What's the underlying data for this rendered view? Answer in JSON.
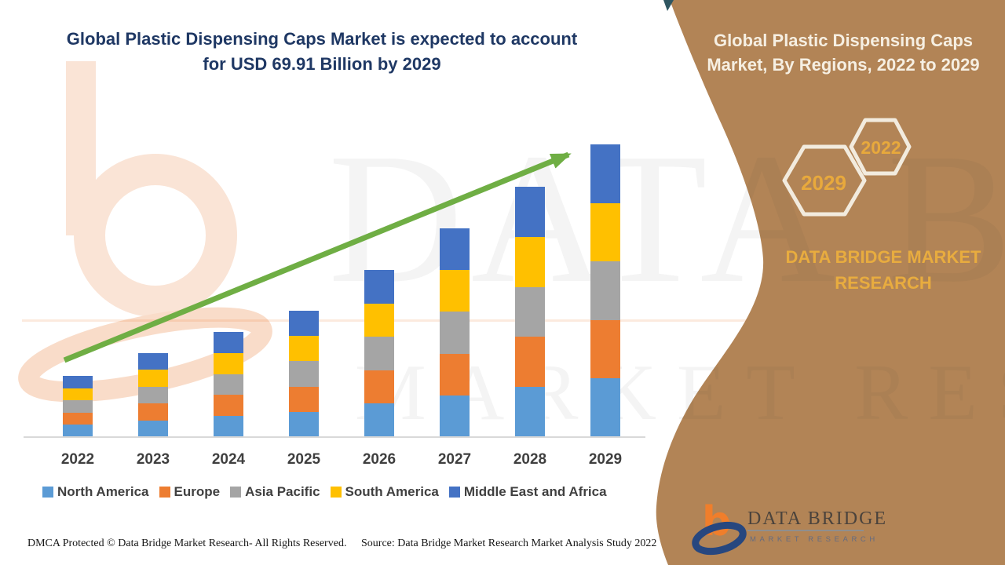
{
  "header": {
    "title_lines": [
      "Global Plastic Dispensing Caps Market is expected to account",
      "for USD 69.91 Billion by 2029"
    ]
  },
  "side_panel": {
    "title_lines": [
      "Global Plastic Dispensing Caps",
      "Market, By Regions, 2022 to 2029"
    ],
    "hex_large_label": "2029",
    "hex_small_label": "2022",
    "brand_lines": [
      "DATA BRIDGE MARKET",
      "RESEARCH"
    ],
    "bg_color": "#B28456",
    "gold_color": "#E8A93C",
    "hex_stroke_color": "#F2EBDE"
  },
  "watermark": {
    "row1": "DATA BRIDGE",
    "row2": "MARKET RESEARCH"
  },
  "chart_data": {
    "type": "bar",
    "stacked": true,
    "title": "Global Plastic Dispensing Caps Market is expected to account for USD 69.91 Billion by 2029",
    "unit": "USD Billion",
    "years": [
      "2022",
      "2023",
      "2024",
      "2025",
      "2026",
      "2027",
      "2028",
      "2029"
    ],
    "totals": [
      14.6,
      20.1,
      25.1,
      30.2,
      39.9,
      49.9,
      59.8,
      69.91
    ],
    "series": [
      {
        "name": "North America",
        "color": "#5B9BD5",
        "values": [
          2.92,
          4.02,
          5.02,
          6.04,
          7.98,
          9.98,
          11.96,
          13.98
        ]
      },
      {
        "name": "Europe",
        "color": "#ED7D31",
        "values": [
          2.92,
          4.02,
          5.02,
          6.04,
          7.98,
          9.98,
          11.96,
          13.98
        ]
      },
      {
        "name": "Asia Pacific",
        "color": "#A5A5A5",
        "values": [
          2.92,
          4.02,
          5.02,
          6.04,
          7.98,
          9.98,
          11.96,
          13.98
        ]
      },
      {
        "name": "South America",
        "color": "#FFC000",
        "values": [
          2.92,
          4.02,
          5.02,
          6.04,
          7.98,
          9.98,
          11.96,
          13.98
        ]
      },
      {
        "name": "Middle East and Africa",
        "color": "#4472C4",
        "values": [
          2.92,
          4.02,
          5.02,
          6.04,
          7.98,
          9.98,
          11.96,
          13.98
        ]
      }
    ],
    "legend_position": "bottom",
    "y_axis_shown": false,
    "grid": false,
    "trend_arrow": {
      "shown": true,
      "color": "#6FAE44"
    }
  },
  "footer": {
    "dmca": "DMCA Protected © Data Bridge Market Research- All Rights Reserved.",
    "source": "Source: Data Bridge Market Research Market Analysis Study 2022"
  },
  "logo": {
    "name_text": "DATA BRIDGE",
    "sub_text": "MARKET RESEARCH"
  }
}
